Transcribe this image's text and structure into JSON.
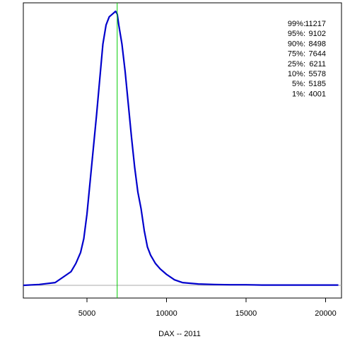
{
  "chart_data": {
    "type": "line",
    "title": "",
    "xlabel": "DAX -- 2011",
    "ylabel": "",
    "xlim": [
      1000,
      21000
    ],
    "ylim": [
      0,
      1
    ],
    "x_ticks": [
      5000,
      10000,
      15000,
      20000
    ],
    "x_tick_labels": [
      "5000",
      "10000",
      "15000",
      "20000"
    ],
    "grid": false,
    "legend": "none",
    "series": [
      {
        "color": "#0000cc",
        "x": [
          1000,
          2000,
          3000,
          3500,
          4000,
          4300,
          4600,
          4800,
          5000,
          5200,
          5400,
          5600,
          5800,
          6000,
          6200,
          6400,
          6600,
          6800,
          6900,
          7000,
          7200,
          7400,
          7600,
          7800,
          8000,
          8200,
          8400,
          8600,
          8800,
          9000,
          9300,
          9600,
          10000,
          10500,
          11000,
          12000,
          13000,
          14000,
          15000,
          16000,
          17000,
          18000,
          19000,
          20000,
          20800
        ],
        "y": [
          0.0,
          0.003,
          0.01,
          0.03,
          0.05,
          0.08,
          0.12,
          0.17,
          0.26,
          0.38,
          0.5,
          0.62,
          0.75,
          0.88,
          0.95,
          0.98,
          0.99,
          1.0,
          0.99,
          0.95,
          0.88,
          0.78,
          0.66,
          0.54,
          0.43,
          0.34,
          0.28,
          0.2,
          0.14,
          0.11,
          0.08,
          0.06,
          0.04,
          0.02,
          0.01,
          0.005,
          0.003,
          0.002,
          0.002,
          0.001,
          0.001,
          0.001,
          0.001,
          0.001,
          0.001
        ]
      }
    ],
    "vline": {
      "x": 6900,
      "color": "#00cc00"
    },
    "baseline": {
      "y": 0,
      "color": "#aaaaaa"
    },
    "annotations": [
      {
        "label": "99%:",
        "value": "11217"
      },
      {
        "label": "95%:",
        "value": "9102"
      },
      {
        "label": "90%:",
        "value": "8498"
      },
      {
        "label": "75%:",
        "value": "7644"
      },
      {
        "label": "25%:",
        "value": "6211"
      },
      {
        "label": "10%:",
        "value": "5578"
      },
      {
        "label": "5%:",
        "value": "5185"
      },
      {
        "label": "1%:",
        "value": "4001"
      }
    ]
  }
}
